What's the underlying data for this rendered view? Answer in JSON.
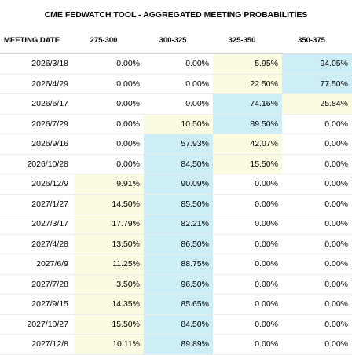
{
  "title": "CME FEDWATCH TOOL - AGGREGATED MEETING PROBABILITIES",
  "columns": [
    "MEETING DATE",
    "275-300",
    "300-325",
    "325-350",
    "350-375"
  ],
  "colors": {
    "highlight_light": "#fbfbe2",
    "highlight_max": "#cdeef7"
  },
  "rows": [
    {
      "date": "2026/3/18",
      "values": [
        "0.00%",
        "0.00%",
        "5.95%",
        "94.05%"
      ],
      "hl": [
        "",
        "",
        "y",
        "c"
      ]
    },
    {
      "date": "2026/4/29",
      "values": [
        "0.00%",
        "0.00%",
        "22.50%",
        "77.50%"
      ],
      "hl": [
        "",
        "",
        "y",
        "c"
      ]
    },
    {
      "date": "2026/6/17",
      "values": [
        "0.00%",
        "0.00%",
        "74.16%",
        "25.84%"
      ],
      "hl": [
        "",
        "",
        "c",
        "y"
      ]
    },
    {
      "date": "2026/7/29",
      "values": [
        "0.00%",
        "10.50%",
        "89.50%",
        "0.00%"
      ],
      "hl": [
        "",
        "y",
        "c",
        ""
      ]
    },
    {
      "date": "2026/9/16",
      "values": [
        "0.00%",
        "57.93%",
        "42.07%",
        "0.00%"
      ],
      "hl": [
        "",
        "c",
        "y",
        ""
      ]
    },
    {
      "date": "2026/10/28",
      "values": [
        "0.00%",
        "84.50%",
        "15.50%",
        "0.00%"
      ],
      "hl": [
        "",
        "c",
        "y",
        ""
      ]
    },
    {
      "date": "2026/12/9",
      "values": [
        "9.91%",
        "90.09%",
        "0.00%",
        "0.00%"
      ],
      "hl": [
        "y",
        "c",
        "",
        ""
      ]
    },
    {
      "date": "2027/1/27",
      "values": [
        "14.50%",
        "85.50%",
        "0.00%",
        "0.00%"
      ],
      "hl": [
        "y",
        "c",
        "",
        ""
      ]
    },
    {
      "date": "2027/3/17",
      "values": [
        "17.79%",
        "82.21%",
        "0.00%",
        "0.00%"
      ],
      "hl": [
        "y",
        "c",
        "",
        ""
      ]
    },
    {
      "date": "2027/4/28",
      "values": [
        "13.50%",
        "86.50%",
        "0.00%",
        "0.00%"
      ],
      "hl": [
        "y",
        "c",
        "",
        ""
      ]
    },
    {
      "date": "2027/6/9",
      "values": [
        "11.25%",
        "88.75%",
        "0.00%",
        "0.00%"
      ],
      "hl": [
        "y",
        "c",
        "",
        ""
      ]
    },
    {
      "date": "2027/7/28",
      "values": [
        "3.50%",
        "96.50%",
        "0.00%",
        "0.00%"
      ],
      "hl": [
        "y",
        "c",
        "",
        ""
      ]
    },
    {
      "date": "2027/9/15",
      "values": [
        "14.35%",
        "85.65%",
        "0.00%",
        "0.00%"
      ],
      "hl": [
        "y",
        "c",
        "",
        ""
      ]
    },
    {
      "date": "2027/10/27",
      "values": [
        "15.50%",
        "84.50%",
        "0.00%",
        "0.00%"
      ],
      "hl": [
        "y",
        "c",
        "",
        ""
      ]
    },
    {
      "date": "2027/12/8",
      "values": [
        "10.11%",
        "89.89%",
        "0.00%",
        "0.00%"
      ],
      "hl": [
        "y",
        "c",
        "",
        ""
      ]
    }
  ]
}
